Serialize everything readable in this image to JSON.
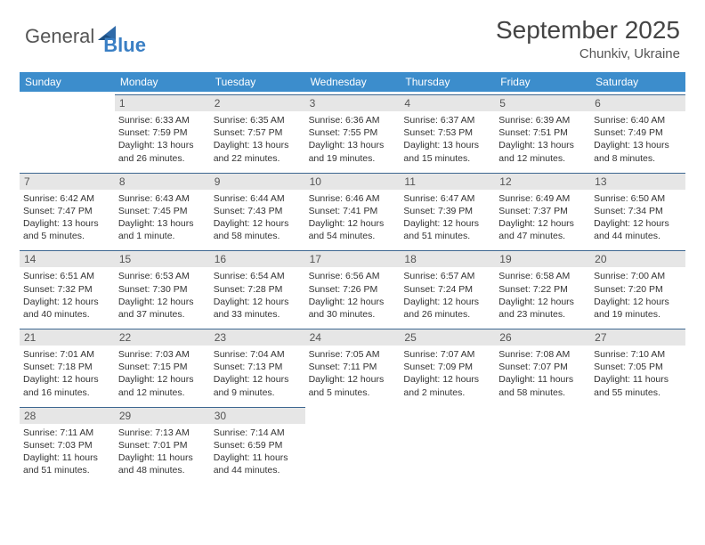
{
  "brand": {
    "word1": "General",
    "word2": "Blue"
  },
  "title": "September 2025",
  "location": "Chunkiv, Ukraine",
  "colors": {
    "header_bg": "#3c8dcc",
    "header_text": "#ffffff",
    "band_bg": "#e6e6e6",
    "rule": "#3c6690",
    "text": "#333333",
    "logo_gray": "#555555",
    "logo_blue": "#3a7fc4"
  },
  "day_names": [
    "Sunday",
    "Monday",
    "Tuesday",
    "Wednesday",
    "Thursday",
    "Friday",
    "Saturday"
  ],
  "weeks": [
    [
      {
        "n": "",
        "sr": "",
        "ss": "",
        "dl": ""
      },
      {
        "n": "1",
        "sr": "Sunrise: 6:33 AM",
        "ss": "Sunset: 7:59 PM",
        "dl": "Daylight: 13 hours and 26 minutes."
      },
      {
        "n": "2",
        "sr": "Sunrise: 6:35 AM",
        "ss": "Sunset: 7:57 PM",
        "dl": "Daylight: 13 hours and 22 minutes."
      },
      {
        "n": "3",
        "sr": "Sunrise: 6:36 AM",
        "ss": "Sunset: 7:55 PM",
        "dl": "Daylight: 13 hours and 19 minutes."
      },
      {
        "n": "4",
        "sr": "Sunrise: 6:37 AM",
        "ss": "Sunset: 7:53 PM",
        "dl": "Daylight: 13 hours and 15 minutes."
      },
      {
        "n": "5",
        "sr": "Sunrise: 6:39 AM",
        "ss": "Sunset: 7:51 PM",
        "dl": "Daylight: 13 hours and 12 minutes."
      },
      {
        "n": "6",
        "sr": "Sunrise: 6:40 AM",
        "ss": "Sunset: 7:49 PM",
        "dl": "Daylight: 13 hours and 8 minutes."
      }
    ],
    [
      {
        "n": "7",
        "sr": "Sunrise: 6:42 AM",
        "ss": "Sunset: 7:47 PM",
        "dl": "Daylight: 13 hours and 5 minutes."
      },
      {
        "n": "8",
        "sr": "Sunrise: 6:43 AM",
        "ss": "Sunset: 7:45 PM",
        "dl": "Daylight: 13 hours and 1 minute."
      },
      {
        "n": "9",
        "sr": "Sunrise: 6:44 AM",
        "ss": "Sunset: 7:43 PM",
        "dl": "Daylight: 12 hours and 58 minutes."
      },
      {
        "n": "10",
        "sr": "Sunrise: 6:46 AM",
        "ss": "Sunset: 7:41 PM",
        "dl": "Daylight: 12 hours and 54 minutes."
      },
      {
        "n": "11",
        "sr": "Sunrise: 6:47 AM",
        "ss": "Sunset: 7:39 PM",
        "dl": "Daylight: 12 hours and 51 minutes."
      },
      {
        "n": "12",
        "sr": "Sunrise: 6:49 AM",
        "ss": "Sunset: 7:37 PM",
        "dl": "Daylight: 12 hours and 47 minutes."
      },
      {
        "n": "13",
        "sr": "Sunrise: 6:50 AM",
        "ss": "Sunset: 7:34 PM",
        "dl": "Daylight: 12 hours and 44 minutes."
      }
    ],
    [
      {
        "n": "14",
        "sr": "Sunrise: 6:51 AM",
        "ss": "Sunset: 7:32 PM",
        "dl": "Daylight: 12 hours and 40 minutes."
      },
      {
        "n": "15",
        "sr": "Sunrise: 6:53 AM",
        "ss": "Sunset: 7:30 PM",
        "dl": "Daylight: 12 hours and 37 minutes."
      },
      {
        "n": "16",
        "sr": "Sunrise: 6:54 AM",
        "ss": "Sunset: 7:28 PM",
        "dl": "Daylight: 12 hours and 33 minutes."
      },
      {
        "n": "17",
        "sr": "Sunrise: 6:56 AM",
        "ss": "Sunset: 7:26 PM",
        "dl": "Daylight: 12 hours and 30 minutes."
      },
      {
        "n": "18",
        "sr": "Sunrise: 6:57 AM",
        "ss": "Sunset: 7:24 PM",
        "dl": "Daylight: 12 hours and 26 minutes."
      },
      {
        "n": "19",
        "sr": "Sunrise: 6:58 AM",
        "ss": "Sunset: 7:22 PM",
        "dl": "Daylight: 12 hours and 23 minutes."
      },
      {
        "n": "20",
        "sr": "Sunrise: 7:00 AM",
        "ss": "Sunset: 7:20 PM",
        "dl": "Daylight: 12 hours and 19 minutes."
      }
    ],
    [
      {
        "n": "21",
        "sr": "Sunrise: 7:01 AM",
        "ss": "Sunset: 7:18 PM",
        "dl": "Daylight: 12 hours and 16 minutes."
      },
      {
        "n": "22",
        "sr": "Sunrise: 7:03 AM",
        "ss": "Sunset: 7:15 PM",
        "dl": "Daylight: 12 hours and 12 minutes."
      },
      {
        "n": "23",
        "sr": "Sunrise: 7:04 AM",
        "ss": "Sunset: 7:13 PM",
        "dl": "Daylight: 12 hours and 9 minutes."
      },
      {
        "n": "24",
        "sr": "Sunrise: 7:05 AM",
        "ss": "Sunset: 7:11 PM",
        "dl": "Daylight: 12 hours and 5 minutes."
      },
      {
        "n": "25",
        "sr": "Sunrise: 7:07 AM",
        "ss": "Sunset: 7:09 PM",
        "dl": "Daylight: 12 hours and 2 minutes."
      },
      {
        "n": "26",
        "sr": "Sunrise: 7:08 AM",
        "ss": "Sunset: 7:07 PM",
        "dl": "Daylight: 11 hours and 58 minutes."
      },
      {
        "n": "27",
        "sr": "Sunrise: 7:10 AM",
        "ss": "Sunset: 7:05 PM",
        "dl": "Daylight: 11 hours and 55 minutes."
      }
    ],
    [
      {
        "n": "28",
        "sr": "Sunrise: 7:11 AM",
        "ss": "Sunset: 7:03 PM",
        "dl": "Daylight: 11 hours and 51 minutes."
      },
      {
        "n": "29",
        "sr": "Sunrise: 7:13 AM",
        "ss": "Sunset: 7:01 PM",
        "dl": "Daylight: 11 hours and 48 minutes."
      },
      {
        "n": "30",
        "sr": "Sunrise: 7:14 AM",
        "ss": "Sunset: 6:59 PM",
        "dl": "Daylight: 11 hours and 44 minutes."
      },
      {
        "n": "",
        "sr": "",
        "ss": "",
        "dl": ""
      },
      {
        "n": "",
        "sr": "",
        "ss": "",
        "dl": ""
      },
      {
        "n": "",
        "sr": "",
        "ss": "",
        "dl": ""
      },
      {
        "n": "",
        "sr": "",
        "ss": "",
        "dl": ""
      }
    ]
  ]
}
